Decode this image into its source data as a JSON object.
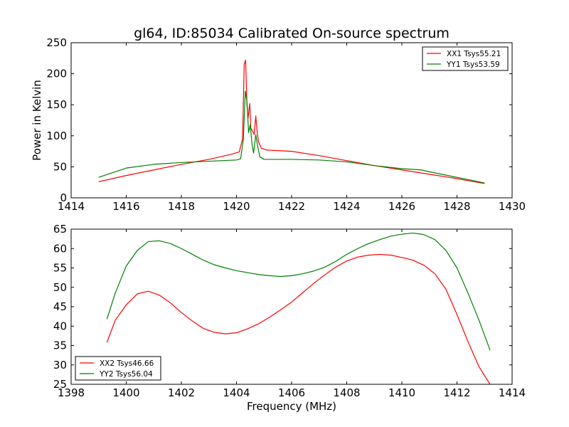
{
  "chart_data": [
    {
      "type": "line",
      "title": "gl64, ID:85034 Calibrated On-source spectrum",
      "xlabel": "",
      "ylabel": "Power in Kelvin",
      "xlim": [
        1414,
        1430
      ],
      "ylim": [
        0,
        250
      ],
      "xticks": [
        "1414",
        "1416",
        "1418",
        "1420",
        "1422",
        "1424",
        "1426",
        "1428",
        "1430"
      ],
      "yticks": [
        "0",
        "50",
        "100",
        "150",
        "200",
        "250"
      ],
      "grid": false,
      "legend": "top-right",
      "series": [
        {
          "name": "XX1 Tsys55.21",
          "color": "#ff0000",
          "x": [
            1415.0,
            1416.0,
            1417.0,
            1418.0,
            1419.0,
            1419.8,
            1420.1,
            1420.22,
            1420.28,
            1420.33,
            1420.38,
            1420.42,
            1420.48,
            1420.52,
            1420.58,
            1420.64,
            1420.7,
            1420.74,
            1420.8,
            1420.9,
            1421.1,
            1422.0,
            1423.0,
            1424.0,
            1425.0,
            1426.0,
            1427.0,
            1428.0,
            1429.0
          ],
          "values": [
            26,
            36,
            45,
            54,
            62,
            70,
            74,
            95,
            215,
            222,
            150,
            128,
            152,
            112,
            108,
            102,
            132,
            110,
            90,
            80,
            77,
            75,
            68,
            60,
            52,
            45,
            38,
            31,
            23
          ]
        },
        {
          "name": "YY1 Tsys53.59",
          "color": "#008000",
          "x": [
            1415.0,
            1416.0,
            1417.0,
            1418.0,
            1419.0,
            1420.0,
            1420.15,
            1420.25,
            1420.32,
            1420.38,
            1420.44,
            1420.5,
            1420.56,
            1420.62,
            1420.7,
            1420.76,
            1420.85,
            1421.0,
            1422.0,
            1423.0,
            1424.0,
            1425.0,
            1426.0,
            1426.7,
            1427.0,
            1428.0,
            1429.0
          ],
          "values": [
            33,
            48,
            54,
            57,
            59,
            61,
            63,
            95,
            172,
            155,
            105,
            118,
            88,
            72,
            102,
            85,
            66,
            62,
            62,
            61,
            58,
            52,
            47,
            45,
            42,
            33,
            24
          ]
        }
      ]
    },
    {
      "type": "line",
      "title": "",
      "xlabel": "Frequency (MHz)",
      "ylabel": "",
      "xlim": [
        1398,
        1414
      ],
      "ylim": [
        25,
        65
      ],
      "xticks": [
        "1398",
        "1400",
        "1402",
        "1404",
        "1406",
        "1408",
        "1410",
        "1412",
        "1414"
      ],
      "yticks": [
        "25",
        "30",
        "35",
        "40",
        "45",
        "50",
        "55",
        "60",
        "65"
      ],
      "grid": false,
      "legend": "bottom-left",
      "series": [
        {
          "name": "XX2 Tsys46.66",
          "color": "#ff0000",
          "x": [
            1399.3,
            1399.6,
            1400.0,
            1400.4,
            1400.8,
            1401.2,
            1401.6,
            1402.0,
            1402.4,
            1402.8,
            1403.2,
            1403.6,
            1404.0,
            1404.4,
            1404.8,
            1405.2,
            1405.6,
            1406.0,
            1406.4,
            1406.8,
            1407.2,
            1407.6,
            1408.0,
            1408.4,
            1408.8,
            1409.2,
            1409.6,
            1410.0,
            1410.4,
            1410.8,
            1411.2,
            1411.6,
            1412.0,
            1412.4,
            1412.8,
            1413.2
          ],
          "values": [
            35.8,
            41.5,
            45.5,
            48.3,
            49.0,
            48.0,
            46.0,
            43.5,
            41.3,
            39.4,
            38.4,
            38.0,
            38.3,
            39.3,
            40.6,
            42.3,
            44.2,
            46.2,
            48.6,
            51.0,
            53.2,
            55.2,
            56.8,
            57.8,
            58.3,
            58.5,
            58.3,
            57.7,
            57.0,
            55.7,
            53.5,
            49.5,
            43.0,
            36.0,
            29.5,
            25.0
          ]
        },
        {
          "name": "YY2 Tsys56.04",
          "color": "#008000",
          "x": [
            1399.3,
            1399.6,
            1400.0,
            1400.4,
            1400.8,
            1401.2,
            1401.6,
            1402.0,
            1402.4,
            1402.8,
            1403.2,
            1403.6,
            1404.0,
            1404.4,
            1404.8,
            1405.2,
            1405.6,
            1406.0,
            1406.4,
            1406.8,
            1407.2,
            1407.6,
            1408.0,
            1408.4,
            1408.8,
            1409.2,
            1409.6,
            1410.0,
            1410.4,
            1410.8,
            1411.2,
            1411.6,
            1412.0,
            1412.4,
            1412.8,
            1413.2
          ],
          "values": [
            41.8,
            48.5,
            55.5,
            59.5,
            61.8,
            62.0,
            61.3,
            60.0,
            58.5,
            57.0,
            55.8,
            55.0,
            54.3,
            53.8,
            53.3,
            53.0,
            52.8,
            53.0,
            53.5,
            54.2,
            55.2,
            56.7,
            58.5,
            60.0,
            61.3,
            62.3,
            63.2,
            63.7,
            64.0,
            63.6,
            62.3,
            59.5,
            55.0,
            48.5,
            41.5,
            33.8
          ]
        }
      ]
    }
  ]
}
